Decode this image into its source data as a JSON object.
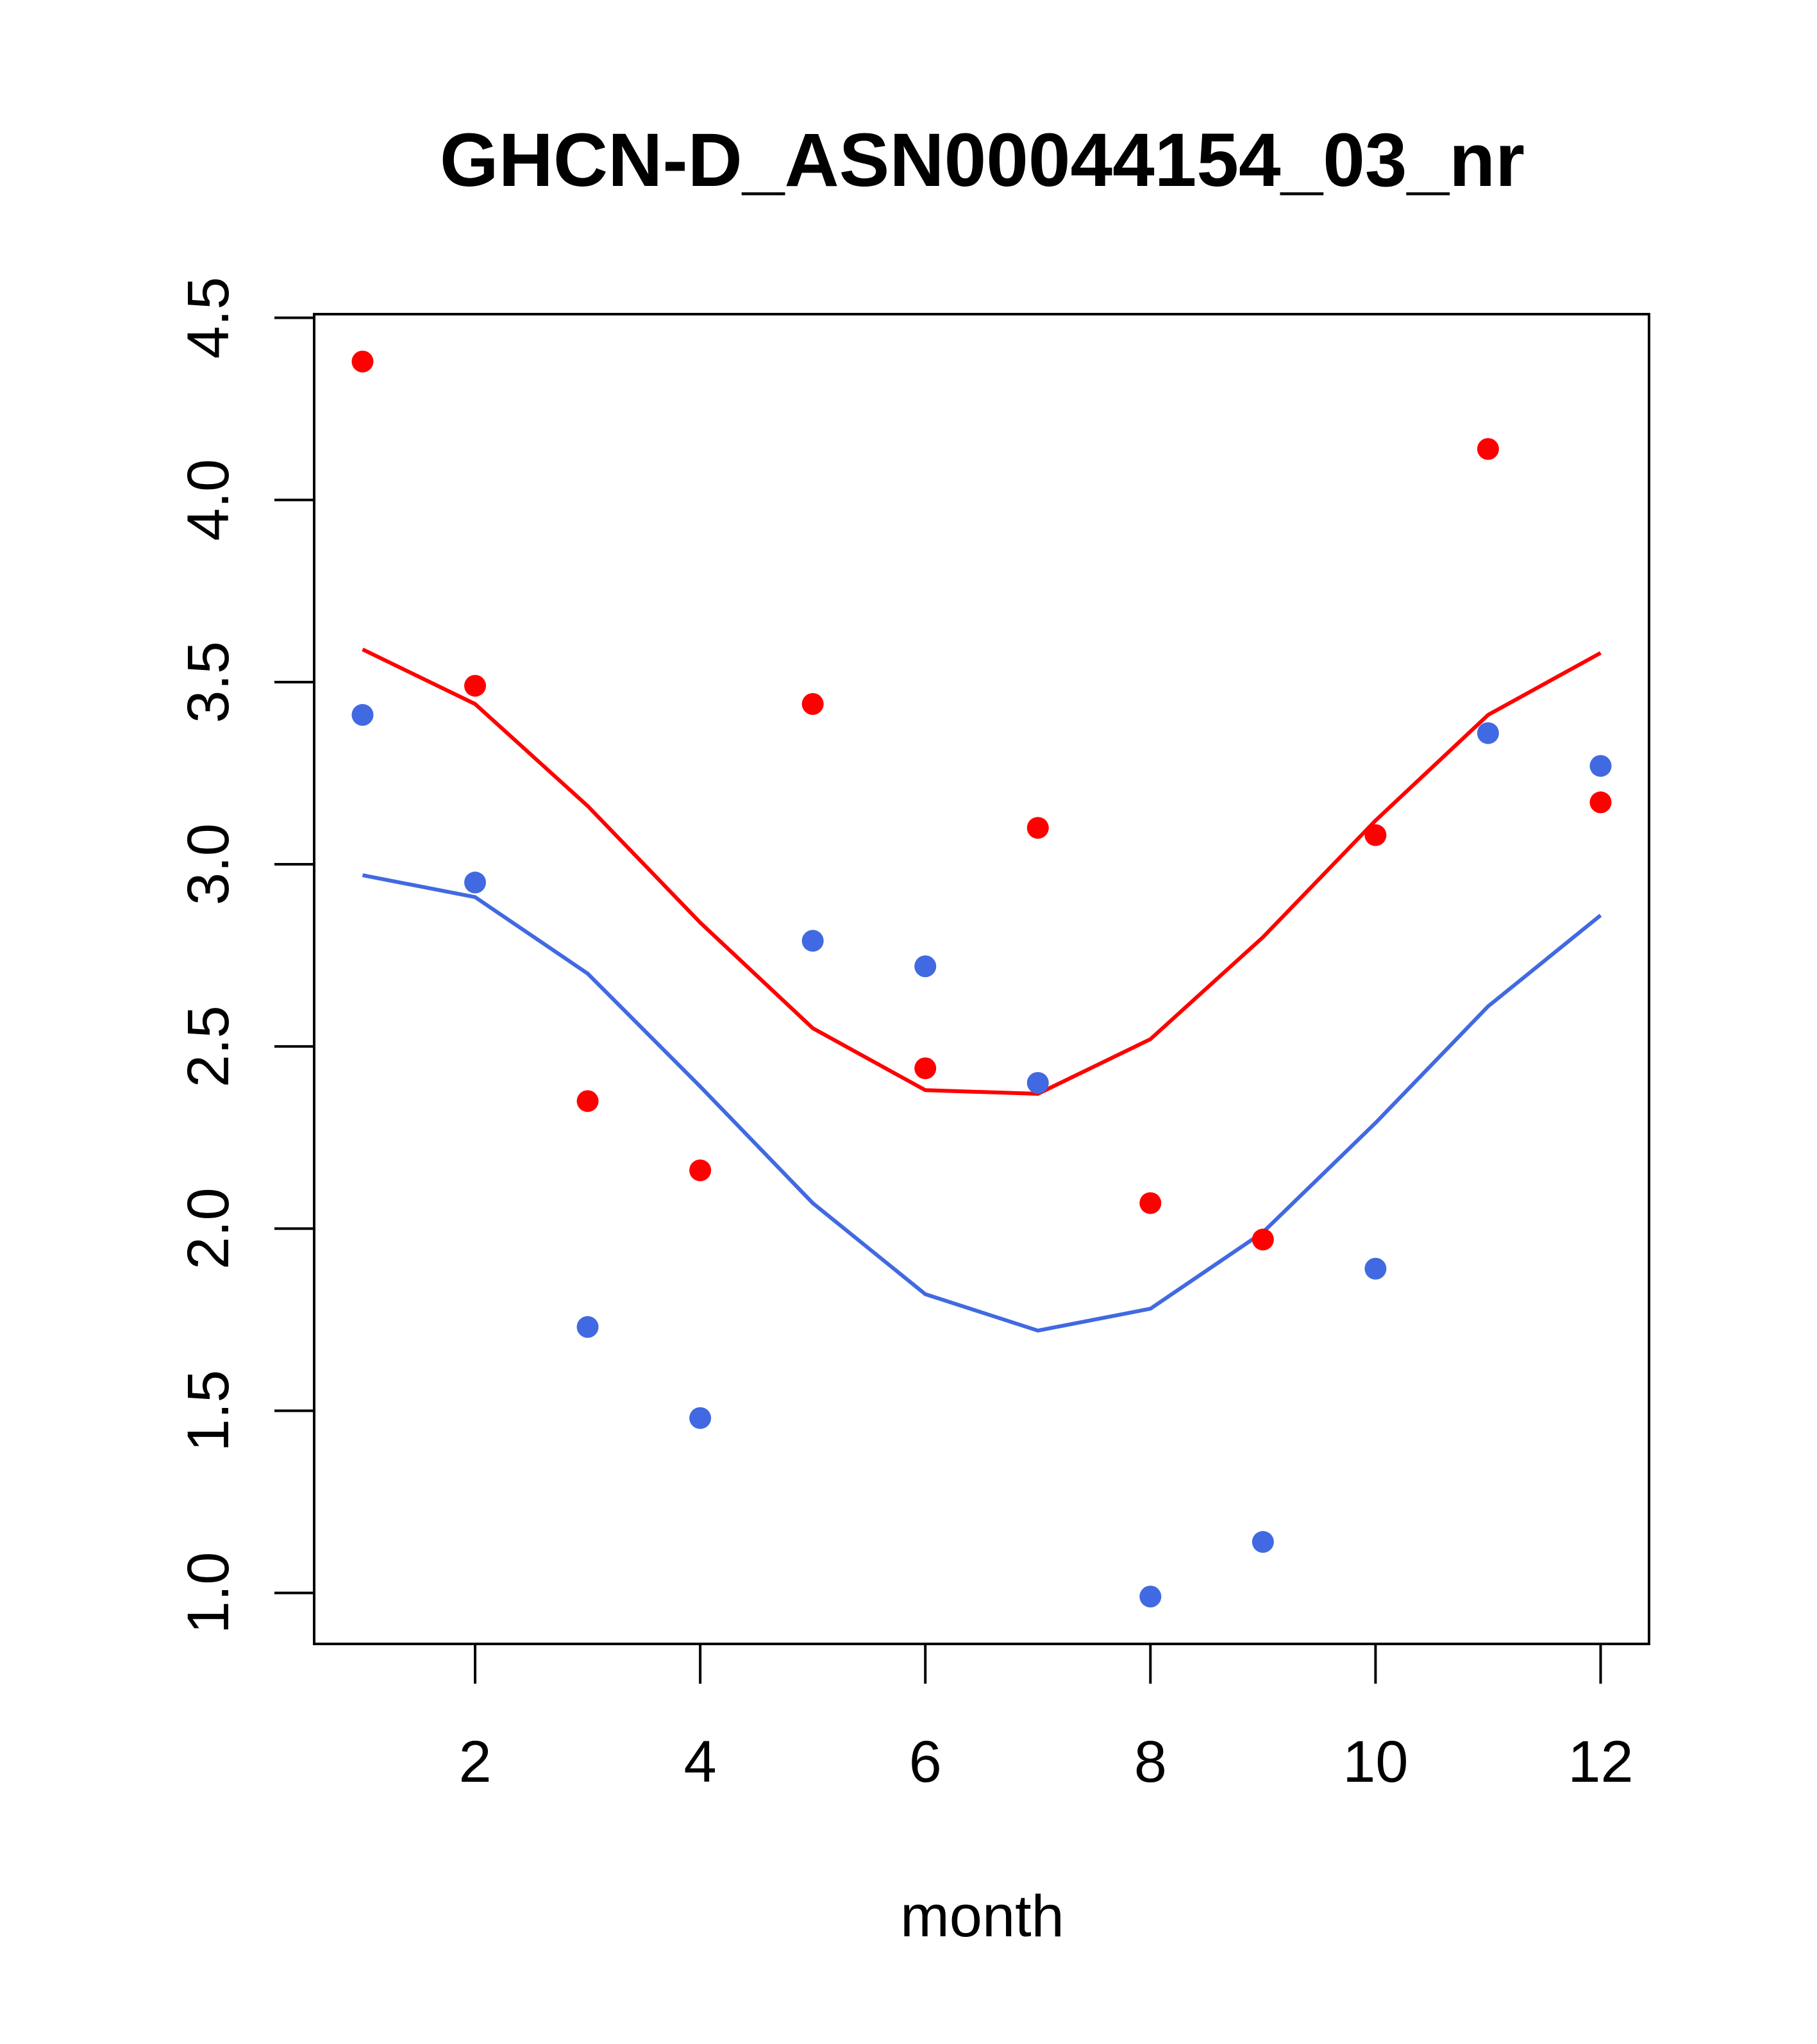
{
  "chart_data": {
    "type": "scatter",
    "title": "GHCN-D_ASN00044154_03_nr",
    "xlabel": "month",
    "ylabel": "",
    "xlim": [
      0.57,
      12.43
    ],
    "ylim": [
      0.86,
      4.51
    ],
    "x_ticks": [
      2,
      4,
      6,
      8,
      10,
      12
    ],
    "x_tick_labels": [
      "2",
      "4",
      "6",
      "8",
      "10",
      "12"
    ],
    "y_ticks": [
      1.0,
      1.5,
      2.0,
      2.5,
      3.0,
      3.5,
      4.0,
      4.5
    ],
    "y_tick_labels": [
      "1.0",
      "1.5",
      "2.0",
      "2.5",
      "3.0",
      "3.5",
      "4.0",
      "4.5"
    ],
    "grid": false,
    "series": [
      {
        "kind": "points",
        "color": "#ff0000",
        "x": [
          1,
          2,
          3,
          4,
          5,
          6,
          7,
          8,
          9,
          10,
          11,
          12
        ],
        "values": [
          4.38,
          3.49,
          2.35,
          2.16,
          3.44,
          2.44,
          3.1,
          2.07,
          1.97,
          3.08,
          4.14,
          3.17
        ]
      },
      {
        "kind": "points",
        "color": "#4169e1",
        "x": [
          1,
          2,
          3,
          4,
          5,
          6,
          7,
          8,
          9,
          10,
          11,
          12
        ],
        "values": [
          3.41,
          2.95,
          1.73,
          1.48,
          2.79,
          2.72,
          2.4,
          0.99,
          1.14,
          1.89,
          3.36,
          3.27
        ]
      },
      {
        "kind": "line",
        "color": "#ff0000",
        "x": [
          1,
          2,
          3,
          4,
          5,
          6,
          7,
          8,
          9,
          10,
          11,
          12
        ],
        "values": [
          3.59,
          3.44,
          3.16,
          2.84,
          2.55,
          2.38,
          2.37,
          2.52,
          2.8,
          3.12,
          3.41,
          3.58
        ]
      },
      {
        "kind": "line",
        "color": "#4169e1",
        "x": [
          1,
          2,
          3,
          4,
          5,
          6,
          7,
          8,
          9,
          10,
          11,
          12
        ],
        "values": [
          2.97,
          2.91,
          2.7,
          2.39,
          2.07,
          1.82,
          1.72,
          1.78,
          1.99,
          2.29,
          2.61,
          2.86
        ]
      }
    ]
  }
}
